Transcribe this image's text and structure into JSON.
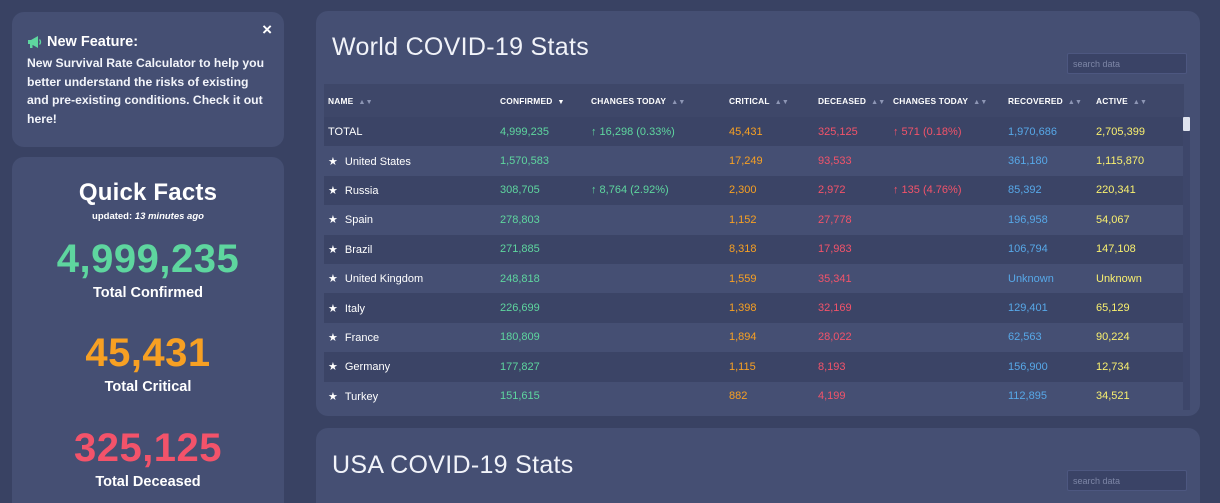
{
  "feature": {
    "title": "New Feature:",
    "text": "New Survival Rate Calculator to help you better understand the risks of existing and pre-existing conditions.",
    "link": "Check it out here!",
    "close": "×"
  },
  "facts": {
    "title": "Quick Facts",
    "updated_label": "updated:",
    "updated_value": "13 minutes ago",
    "confirmed": "4,999,235",
    "confirmed_label": "Total Confirmed",
    "critical": "45,431",
    "critical_label": "Total Critical",
    "deceased": "325,125",
    "deceased_label": "Total Deceased"
  },
  "world": {
    "title": "World COVID-19 Stats",
    "search_placeholder": "search data",
    "columns": [
      "NAME",
      "CONFIRMED",
      "CHANGES TODAY",
      "CRITICAL",
      "DECEASED",
      "CHANGES TODAY",
      "RECOVERED",
      "ACTIVE"
    ],
    "rows": [
      {
        "name": "TOTAL",
        "star": false,
        "confirmed": "4,999,235",
        "changes": "↑ 16,298 (0.33%)",
        "critical": "45,431",
        "deceased": "325,125",
        "dchanges": "↑ 571 (0.18%)",
        "recovered": "1,970,686",
        "active": "2,705,399"
      },
      {
        "name": "United States",
        "star": true,
        "confirmed": "1,570,583",
        "changes": "",
        "critical": "17,249",
        "deceased": "93,533",
        "dchanges": "",
        "recovered": "361,180",
        "active": "1,115,870"
      },
      {
        "name": "Russia",
        "star": true,
        "confirmed": "308,705",
        "changes": "↑ 8,764 (2.92%)",
        "critical": "2,300",
        "deceased": "2,972",
        "dchanges": "↑ 135 (4.76%)",
        "recovered": "85,392",
        "active": "220,341"
      },
      {
        "name": "Spain",
        "star": true,
        "confirmed": "278,803",
        "changes": "",
        "critical": "1,152",
        "deceased": "27,778",
        "dchanges": "",
        "recovered": "196,958",
        "active": "54,067"
      },
      {
        "name": "Brazil",
        "star": true,
        "confirmed": "271,885",
        "changes": "",
        "critical": "8,318",
        "deceased": "17,983",
        "dchanges": "",
        "recovered": "106,794",
        "active": "147,108"
      },
      {
        "name": "United Kingdom",
        "star": true,
        "confirmed": "248,818",
        "changes": "",
        "critical": "1,559",
        "deceased": "35,341",
        "dchanges": "",
        "recovered": "Unknown",
        "active": "Unknown"
      },
      {
        "name": "Italy",
        "star": true,
        "confirmed": "226,699",
        "changes": "",
        "critical": "1,398",
        "deceased": "32,169",
        "dchanges": "",
        "recovered": "129,401",
        "active": "65,129"
      },
      {
        "name": "France",
        "star": true,
        "confirmed": "180,809",
        "changes": "",
        "critical": "1,894",
        "deceased": "28,022",
        "dchanges": "",
        "recovered": "62,563",
        "active": "90,224"
      },
      {
        "name": "Germany",
        "star": true,
        "confirmed": "177,827",
        "changes": "",
        "critical": "1,115",
        "deceased": "8,193",
        "dchanges": "",
        "recovered": "156,900",
        "active": "12,734"
      },
      {
        "name": "Turkey",
        "star": true,
        "confirmed": "151,615",
        "changes": "",
        "critical": "882",
        "deceased": "4,199",
        "dchanges": "",
        "recovered": "112,895",
        "active": "34,521"
      }
    ]
  },
  "usa": {
    "title": "USA COVID-19 Stats",
    "search_placeholder": "search data"
  },
  "colors": {
    "confirmed": "#5ed69f",
    "critical": "#f7a023",
    "deceased": "#f3536a",
    "recovered": "#57a8e8",
    "active": "#f9f06f",
    "card": "#454f73",
    "background": "#394263"
  },
  "icons": {
    "feature": "megaphone-icon",
    "close": "close-icon",
    "sort": "sort-icon",
    "star": "star-icon"
  }
}
